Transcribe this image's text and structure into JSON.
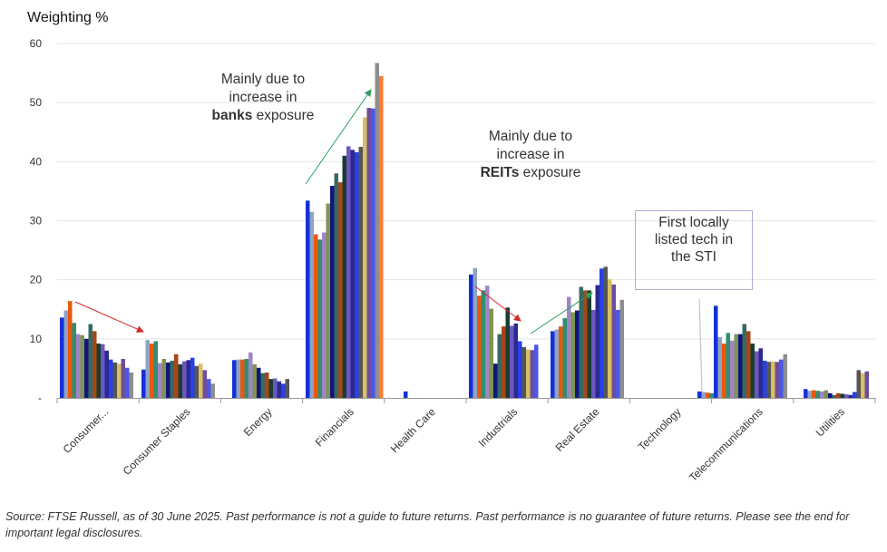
{
  "chart_data": {
    "type": "bar",
    "ylabel": "Weighting %",
    "ylim": [
      0,
      60
    ],
    "yticks": [
      "-",
      "10",
      "20",
      "30",
      "40",
      "50",
      "60"
    ],
    "categories": [
      "Consumer...",
      "Consumer Staples",
      "Energy",
      "Financials",
      "Health Care",
      "Industrials",
      "Real Estate",
      "Technology",
      "Telecommunications",
      "Utilities"
    ],
    "bar_colors": [
      "#1531d6",
      "#8fa3c4",
      "#e8580f",
      "#2f8f6e",
      "#a184c6",
      "#7f9450",
      "#11167d",
      "#356a61",
      "#a6461a",
      "#1a3d2f",
      "#6c56c2",
      "#2c2a8f",
      "#2740e8",
      "#555555",
      "#d7c066",
      "#6f4d9e",
      "#4a57e8",
      "#8e8e8e",
      "#ff7b2f",
      "#26b3c7",
      "#e2b30f",
      "#a79ae0"
    ],
    "series_values": [
      [
        13.6,
        14.8,
        16.4,
        12.7,
        10.8,
        10.6,
        10.0,
        12.5,
        11.3,
        9.2,
        9.1,
        8.0,
        6.5,
        6.0,
        5.8,
        6.6,
        5.1,
        4.3
      ],
      [
        4.8,
        9.8,
        9.2,
        9.6,
        5.9,
        6.6,
        6.0,
        6.3,
        7.4,
        5.7,
        6.2,
        6.4,
        6.8,
        5.4,
        5.8,
        4.7,
        3.2,
        2.4
      ],
      [
        6.4,
        6.5,
        6.5,
        6.6,
        7.7,
        5.7,
        5.1,
        4.2,
        4.3,
        3.2,
        3.3,
        2.8,
        2.4,
        3.2
      ],
      [
        33.4,
        31.5,
        27.7,
        26.8,
        28.0,
        32.9,
        35.9,
        38.0,
        36.5,
        41.0,
        42.6,
        42.0,
        41.6,
        42.5,
        47.5,
        49.1,
        49.0,
        56.7,
        54.5
      ],
      [
        1.1
      ],
      [
        20.9,
        22.0,
        17.3,
        18.2,
        19.0,
        15.1,
        5.8,
        10.8,
        12.1,
        15.3,
        12.2,
        12.6,
        9.6,
        8.6,
        8.2,
        8.1,
        9.0
      ],
      [
        11.3,
        11.6,
        12.1,
        13.5,
        17.1,
        14.5,
        14.8,
        18.8,
        18.2,
        18.2,
        14.9,
        19.1,
        21.9,
        22.2,
        20.1,
        19.2,
        14.9,
        16.6
      ],
      [
        1.1,
        1.0,
        0.9,
        0.8
      ],
      [
        15.6,
        10.3,
        9.2,
        11.0,
        9.7,
        10.8,
        10.8,
        12.5,
        11.3,
        9.2,
        7.9,
        8.4,
        6.3,
        6.1,
        6.2,
        6.1,
        6.5,
        7.4
      ],
      [
        1.5,
        1.2,
        1.3,
        1.2,
        1.1,
        1.3,
        0.8,
        0.5,
        0.8,
        0.7,
        0.6,
        0.5,
        1.0,
        4.7,
        4.2,
        4.5
      ]
    ],
    "annotations": [
      {
        "line1": "Mainly due to",
        "line2": "increase in",
        "bold": "banks",
        "rest": " exposure"
      },
      {
        "line1": "Mainly due to",
        "line2": "increase in",
        "bold": "REITs",
        "rest": " exposure"
      },
      {
        "text1": "First locally",
        "text2": "listed tech in",
        "text3": "the STI"
      }
    ],
    "grid": true,
    "legend": "none"
  },
  "source_text": "Source: FTSE Russell, as of 30 June 2025. Past performance is not a guide to future returns. Past performance is no guarantee of future returns. Please see the end for important legal disclosures."
}
